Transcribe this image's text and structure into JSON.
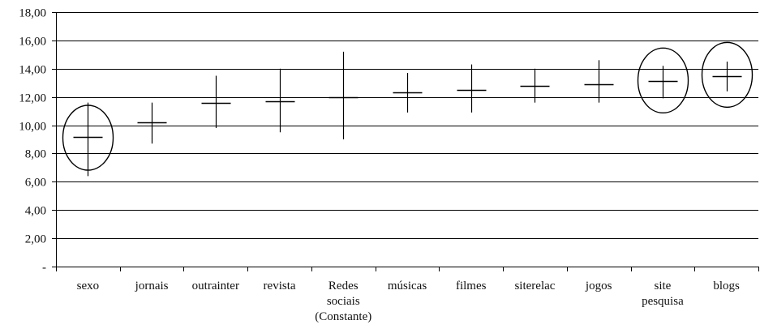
{
  "chart_data": {
    "type": "error-bar",
    "categories": [
      [
        "sexo"
      ],
      [
        "jornais"
      ],
      [
        "outrainter"
      ],
      [
        "revista"
      ],
      [
        "Redes",
        "sociais",
        "(Constante)"
      ],
      [
        "músicas"
      ],
      [
        "filmes"
      ],
      [
        "siterelac"
      ],
      [
        "jogos"
      ],
      [
        "site",
        "pesquisa"
      ],
      [
        "blogs"
      ]
    ],
    "center": [
      9.2,
      10.2,
      11.6,
      11.7,
      12.0,
      12.3,
      12.5,
      12.8,
      12.9,
      13.1,
      13.5
    ],
    "low": [
      6.4,
      8.7,
      9.8,
      9.5,
      9.0,
      10.9,
      10.9,
      11.6,
      11.6,
      11.9,
      12.4
    ],
    "high": [
      11.6,
      11.6,
      13.5,
      14.0,
      15.2,
      13.7,
      14.3,
      14.0,
      14.6,
      14.2,
      14.5
    ],
    "highlighted": [
      true,
      false,
      false,
      false,
      false,
      false,
      false,
      false,
      false,
      true,
      true
    ],
    "ylim": [
      0,
      18
    ],
    "yticks": [
      0,
      2,
      4,
      6,
      8,
      10,
      12,
      14,
      16,
      18
    ],
    "ytick_labels": [
      "-",
      "2,00",
      "4,00",
      "6,00",
      "8,00",
      "10,00",
      "12,00",
      "14,00",
      "16,00",
      "18,00"
    ],
    "grid": true,
    "xlabel": "",
    "ylabel": "",
    "title": ""
  }
}
